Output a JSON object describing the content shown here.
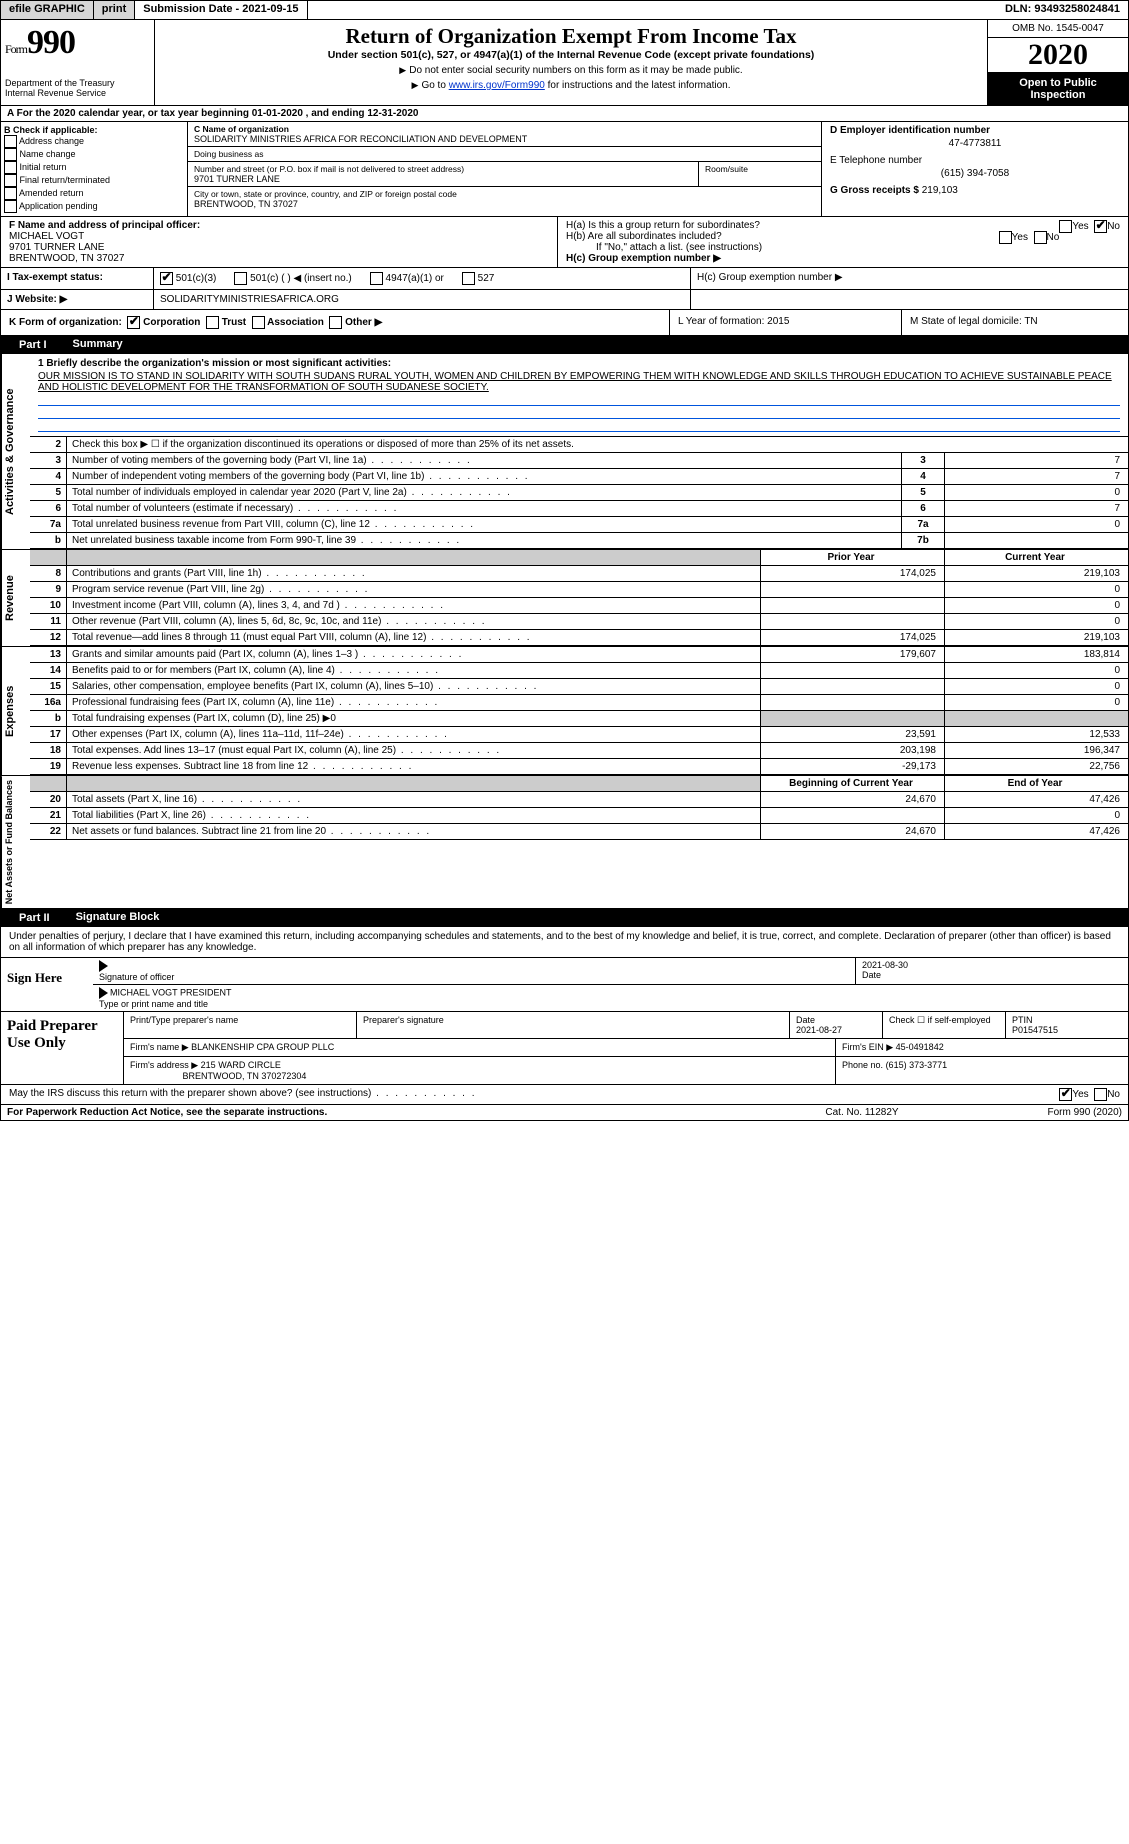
{
  "topbar": {
    "efile": "efile GRAPHIC",
    "print": "print",
    "submission": "Submission Date - 2021-09-15",
    "dln": "DLN: 93493258024841"
  },
  "header": {
    "form_prefix": "Form",
    "form_no": "990",
    "title": "Return of Organization Exempt From Income Tax",
    "subtitle": "Under section 501(c), 527, or 4947(a)(1) of the Internal Revenue Code (except private foundations)",
    "note1": "Do not enter social security numbers on this form as it may be made public.",
    "note2_pre": "Go to ",
    "note2_link": "www.irs.gov/Form990",
    "note2_post": " for instructions and the latest information.",
    "dept": "Department of the Treasury\nInternal Revenue Service",
    "omb": "OMB No. 1545-0047",
    "year": "2020",
    "open": "Open to Public Inspection"
  },
  "rowA": "A For the 2020 calendar year, or tax year beginning 01-01-2020   , and ending 12-31-2020",
  "B": {
    "label": "B Check if applicable:",
    "items": [
      "Address change",
      "Name change",
      "Initial return",
      "Final return/terminated",
      "Amended return",
      "Application pending"
    ]
  },
  "C": {
    "name_lbl": "C Name of organization",
    "name": "SOLIDARITY MINISTRIES AFRICA FOR RECONCILIATION AND DEVELOPMENT",
    "dba_lbl": "Doing business as",
    "dba": "",
    "addr_lbl": "Number and street (or P.O. box if mail is not delivered to street address)",
    "addr": "9701 TURNER LANE",
    "room_lbl": "Room/suite",
    "city_lbl": "City or town, state or province, country, and ZIP or foreign postal code",
    "city": "BRENTWOOD, TN  37027"
  },
  "D": {
    "ein_lbl": "D Employer identification number",
    "ein": "47-4773811",
    "tel_lbl": "E Telephone number",
    "tel": "(615) 394-7058",
    "gross_lbl": "G Gross receipts $",
    "gross": "219,103"
  },
  "F": {
    "lbl": "F  Name and address of principal officer:",
    "name": "MICHAEL VOGT",
    "addr1": "9701 TURNER LANE",
    "addr2": "BRENTWOOD, TN  37027"
  },
  "H": {
    "a": "H(a)  Is this a group return for subordinates?",
    "b": "H(b)  Are all subordinates included?",
    "bnote": "If \"No,\" attach a list. (see instructions)",
    "c": "H(c)  Group exemption number ▶",
    "yes": "Yes",
    "no": "No"
  },
  "I": {
    "lbl": "I    Tax-exempt status:",
    "o1": "501(c)(3)",
    "o2": "501(c) (  ) ◀ (insert no.)",
    "o3": "4947(a)(1) or",
    "o4": "527"
  },
  "J": {
    "lbl": "J   Website: ▶",
    "val": "SOLIDARITYMINISTRIESAFRICA.ORG"
  },
  "K": {
    "lbl": "K Form of organization:",
    "opts": [
      "Corporation",
      "Trust",
      "Association",
      "Other ▶"
    ],
    "L": "L Year of formation: 2015",
    "M": "M State of legal domicile: TN"
  },
  "part1": {
    "hdr_pn": "Part I",
    "hdr_t": "Summary",
    "q1_lbl": "1  Briefly describe the organization's mission or most significant activities:",
    "mission": "OUR MISSION IS TO STAND IN SOLIDARITY WITH SOUTH SUDANS RURAL YOUTH, WOMEN AND CHILDREN BY EMPOWERING THEM WITH KNOWLEDGE AND SKILLS THROUGH EDUCATION TO ACHIEVE SUSTAINABLE PEACE AND HOLISTIC DEVELOPMENT FOR THE TRANSFORMATION OF SOUTH SUDANESE SOCIETY.",
    "q2": "Check this box ▶ ☐ if the organization discontinued its operations or disposed of more than 25% of its net assets.",
    "rows_gov": [
      {
        "n": "3",
        "d": "Number of voting members of the governing body (Part VI, line 1a)",
        "b": "3",
        "v": "7"
      },
      {
        "n": "4",
        "d": "Number of independent voting members of the governing body (Part VI, line 1b)",
        "b": "4",
        "v": "7"
      },
      {
        "n": "5",
        "d": "Total number of individuals employed in calendar year 2020 (Part V, line 2a)",
        "b": "5",
        "v": "0"
      },
      {
        "n": "6",
        "d": "Total number of volunteers (estimate if necessary)",
        "b": "6",
        "v": "7"
      },
      {
        "n": "7a",
        "d": "Total unrelated business revenue from Part VIII, column (C), line 12",
        "b": "7a",
        "v": "0"
      },
      {
        "n": "b",
        "d": "Net unrelated business taxable income from Form 990-T, line 39",
        "b": "7b",
        "v": ""
      }
    ],
    "py": "Prior Year",
    "cy": "Current Year",
    "rows_rev": [
      {
        "n": "8",
        "d": "Contributions and grants (Part VIII, line 1h)",
        "p": "174,025",
        "c": "219,103"
      },
      {
        "n": "9",
        "d": "Program service revenue (Part VIII, line 2g)",
        "p": "",
        "c": "0"
      },
      {
        "n": "10",
        "d": "Investment income (Part VIII, column (A), lines 3, 4, and 7d )",
        "p": "",
        "c": "0"
      },
      {
        "n": "11",
        "d": "Other revenue (Part VIII, column (A), lines 5, 6d, 8c, 9c, 10c, and 11e)",
        "p": "",
        "c": "0"
      },
      {
        "n": "12",
        "d": "Total revenue—add lines 8 through 11 (must equal Part VIII, column (A), line 12)",
        "p": "174,025",
        "c": "219,103"
      }
    ],
    "rows_exp": [
      {
        "n": "13",
        "d": "Grants and similar amounts paid (Part IX, column (A), lines 1–3 )",
        "p": "179,607",
        "c": "183,814"
      },
      {
        "n": "14",
        "d": "Benefits paid to or for members (Part IX, column (A), line 4)",
        "p": "",
        "c": "0"
      },
      {
        "n": "15",
        "d": "Salaries, other compensation, employee benefits (Part IX, column (A), lines 5–10)",
        "p": "",
        "c": "0"
      },
      {
        "n": "16a",
        "d": "Professional fundraising fees (Part IX, column (A), line 11e)",
        "p": "",
        "c": "0"
      },
      {
        "n": "b",
        "d": "Total fundraising expenses (Part IX, column (D), line 25) ▶0",
        "p": "SHADE",
        "c": "SHADE"
      },
      {
        "n": "17",
        "d": "Other expenses (Part IX, column (A), lines 11a–11d, 11f–24e)",
        "p": "23,591",
        "c": "12,533"
      },
      {
        "n": "18",
        "d": "Total expenses. Add lines 13–17 (must equal Part IX, column (A), line 25)",
        "p": "203,198",
        "c": "196,347"
      },
      {
        "n": "19",
        "d": "Revenue less expenses. Subtract line 18 from line 12",
        "p": "-29,173",
        "c": "22,756"
      }
    ],
    "by": "Beginning of Current Year",
    "ey": "End of Year",
    "rows_net": [
      {
        "n": "20",
        "d": "Total assets (Part X, line 16)",
        "p": "24,670",
        "c": "47,426"
      },
      {
        "n": "21",
        "d": "Total liabilities (Part X, line 26)",
        "p": "",
        "c": "0"
      },
      {
        "n": "22",
        "d": "Net assets or fund balances. Subtract line 21 from line 20",
        "p": "24,670",
        "c": "47,426"
      }
    ],
    "vtab_gov": "Activities & Governance",
    "vtab_rev": "Revenue",
    "vtab_exp": "Expenses",
    "vtab_net": "Net Assets or Fund Balances"
  },
  "part2": {
    "hdr_pn": "Part II",
    "hdr_t": "Signature Block",
    "decl": "Under penalties of perjury, I declare that I have examined this return, including accompanying schedules and statements, and to the best of my knowledge and belief, it is true, correct, and complete. Declaration of preparer (other than officer) is based on all information of which preparer has any knowledge.",
    "sign_here": "Sign Here",
    "sig_of": "Signature of officer",
    "date": "Date",
    "date_v": "2021-08-30",
    "name_title": "Type or print name and title",
    "officer": "MICHAEL VOGT  PRESIDENT",
    "paid": "Paid Preparer Use Only",
    "pt_name_lbl": "Print/Type preparer's name",
    "pt_name": "",
    "pt_sig_lbl": "Preparer's signature",
    "pt_date_lbl": "Date",
    "pt_date": "2021-08-27",
    "pt_self_lbl": "Check ☐ if self-employed",
    "ptin_lbl": "PTIN",
    "ptin": "P01547515",
    "firm_name_lbl": "Firm's name    ▶",
    "firm_name": "BLANKENSHIP CPA GROUP PLLC",
    "firm_ein_lbl": "Firm's EIN ▶",
    "firm_ein": "45-0491842",
    "firm_addr_lbl": "Firm's address ▶",
    "firm_addr1": "215 WARD CIRCLE",
    "firm_addr2": "BRENTWOOD, TN  370272304",
    "phone_lbl": "Phone no.",
    "phone": "(615) 373-3771",
    "discuss": "May the IRS discuss this return with the preparer shown above? (see instructions)",
    "yes": "Yes",
    "no": "No"
  },
  "footer": {
    "l": "For Paperwork Reduction Act Notice, see the separate instructions.",
    "m": "Cat. No. 11282Y",
    "r": "Form 990 (2020)"
  }
}
